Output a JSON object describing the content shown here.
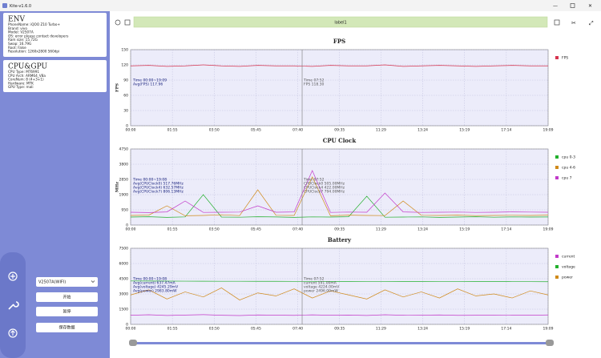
{
  "window": {
    "title": "Kite-v1.6.0"
  },
  "sidebar": {
    "env": {
      "title": "ENV",
      "lines": [
        "PhoneName: iQOO Z10 Turbo+",
        "Brand: vivo",
        "Model: V2507A",
        "OS: error please contact developers",
        "Ram size: 15.72G",
        "Swap: 16.79G",
        "Root: False",
        "Resolution: 1260x2800 560dpi"
      ]
    },
    "cpu_gpu": {
      "title": "CPU&GPU",
      "lines": [
        "CPU Type: MT6991",
        "CPU Arch: ARM64_V8a",
        "CoreNum: 8 (4+3+1)",
        "Hardware: MTK",
        "GPU Type: mali"
      ]
    },
    "device": "V2507A(WIFI)",
    "buttons": [
      "开始",
      "暂停",
      "保存数据"
    ]
  },
  "toolbar": {
    "label": "label1"
  },
  "chart_data": [
    {
      "type": "line",
      "title": "FPS",
      "y_label": "FPS",
      "x": [
        0,
        50,
        100,
        150,
        200,
        250,
        300,
        350,
        400,
        450,
        500,
        550,
        600,
        650,
        700,
        750,
        800,
        850,
        900,
        950,
        1000,
        1050,
        1100,
        1149
      ],
      "xlim": [
        0,
        1149
      ],
      "xticks": [
        {
          "value": 0,
          "label": "00:00"
        },
        {
          "value": 115,
          "label": "01:55"
        },
        {
          "value": 230,
          "label": "03:50"
        },
        {
          "value": 345,
          "label": "05:45"
        },
        {
          "value": 460,
          "label": "07:40"
        },
        {
          "value": 575,
          "label": "09:35"
        },
        {
          "value": 689,
          "label": "11:29"
        },
        {
          "value": 804,
          "label": "13:24"
        },
        {
          "value": 919,
          "label": "15:19"
        },
        {
          "value": 1034,
          "label": "17:14"
        },
        {
          "value": 1149,
          "label": "19:09"
        }
      ],
      "ylim": [
        0,
        150
      ],
      "yticks": [
        0,
        30,
        60,
        90,
        120,
        150
      ],
      "grid": true,
      "series": [
        {
          "name": "FPS",
          "color": "#d6344f",
          "values": [
            118,
            119,
            117,
            118,
            120,
            118,
            117,
            119,
            118,
            118,
            117,
            119,
            118,
            118,
            120,
            117,
            118,
            119,
            118,
            117,
            118,
            119,
            118,
            118
          ]
        }
      ],
      "summary": [
        "Time 00:00~19:09",
        "Avg(FPS) 117.96"
      ],
      "cursor": {
        "value": 472,
        "lines": [
          "Time 07:52",
          "FPS 118.30"
        ]
      }
    },
    {
      "type": "line",
      "title": "CPU Clock",
      "y_label": "MHz",
      "x": [
        0,
        50,
        100,
        150,
        200,
        250,
        300,
        350,
        400,
        450,
        500,
        550,
        600,
        650,
        700,
        750,
        800,
        850,
        900,
        950,
        1000,
        1050,
        1100,
        1149
      ],
      "xlim": [
        0,
        1149
      ],
      "xticks": [
        {
          "value": 0,
          "label": "00:00"
        },
        {
          "value": 115,
          "label": "01:55"
        },
        {
          "value": 230,
          "label": "03:50"
        },
        {
          "value": 345,
          "label": "05:45"
        },
        {
          "value": 460,
          "label": "07:40"
        },
        {
          "value": 575,
          "label": "09:35"
        },
        {
          "value": 689,
          "label": "11:29"
        },
        {
          "value": 804,
          "label": "13:24"
        },
        {
          "value": 919,
          "label": "15:19"
        },
        {
          "value": 1034,
          "label": "17:14"
        },
        {
          "value": 1149,
          "label": "19:09"
        }
      ],
      "ylim": [
        0,
        4750
      ],
      "yticks": [
        0,
        950,
        1900,
        2850,
        3800,
        4750
      ],
      "grid": true,
      "series": [
        {
          "name": "cpu 0-3",
          "color": "#22b02c",
          "values": [
            500,
            520,
            480,
            510,
            1900,
            500,
            490,
            520,
            505,
            480,
            510,
            500,
            520,
            1800,
            490,
            500,
            510,
            480,
            500,
            520,
            490,
            510,
            500,
            505
          ]
        },
        {
          "name": "cpu 4-6",
          "color": "#d08a1a",
          "values": [
            600,
            620,
            1200,
            580,
            600,
            640,
            590,
            2200,
            610,
            600,
            3000,
            580,
            620,
            600,
            590,
            1500,
            610,
            600,
            620,
            590,
            600,
            610,
            600,
            620
          ]
        },
        {
          "name": "cpu 7",
          "color": "#c23ac9",
          "values": [
            800,
            780,
            820,
            1500,
            790,
            800,
            810,
            1200,
            800,
            820,
            3400,
            790,
            810,
            800,
            2000,
            820,
            790,
            800,
            810,
            790,
            800,
            820,
            810,
            800
          ]
        }
      ],
      "summary": [
        "Time 00:00~19:08",
        "Avg(CPUClock0) 517.76MHz",
        "Avg(CPUClock4) 632.57MHz",
        "Avg(CPUClock7) 806.13MHz"
      ],
      "cursor": {
        "value": 472,
        "lines": [
          "Time 07:52",
          "CPUClock0 505.00MHz",
          "CPUClock4 422.00MHz",
          "CPUClock7 794.00MHz"
        ]
      }
    },
    {
      "type": "line",
      "title": "Battery",
      "y_label": "",
      "x": [
        0,
        50,
        100,
        150,
        200,
        250,
        300,
        350,
        400,
        450,
        500,
        550,
        600,
        650,
        700,
        750,
        800,
        850,
        900,
        950,
        1000,
        1050,
        1100,
        1149
      ],
      "xlim": [
        0,
        1149
      ],
      "xticks": [
        {
          "value": 0,
          "label": "00:00"
        },
        {
          "value": 115,
          "label": "01:55"
        },
        {
          "value": 230,
          "label": "03:50"
        },
        {
          "value": 345,
          "label": "05:45"
        },
        {
          "value": 460,
          "label": "07:40"
        },
        {
          "value": 575,
          "label": "09:35"
        },
        {
          "value": 689,
          "label": "11:29"
        },
        {
          "value": 804,
          "label": "13:24"
        },
        {
          "value": 919,
          "label": "15:19"
        },
        {
          "value": 1034,
          "label": "17:14"
        },
        {
          "value": 1149,
          "label": "19:09"
        }
      ],
      "ylim": [
        0,
        7500
      ],
      "yticks": [
        0,
        1500,
        3000,
        4500,
        6000,
        7500
      ],
      "grid": true,
      "series": [
        {
          "name": "current",
          "color": "#c23ac9",
          "values": [
            900,
            950,
            880,
            920,
            960,
            900,
            870,
            930,
            910,
            890,
            940,
            900,
            920,
            880,
            950,
            900,
            910,
            930,
            890,
            900,
            920,
            910,
            900,
            930
          ]
        },
        {
          "name": "voltage",
          "color": "#22b02c",
          "values": [
            4280,
            4270,
            4265,
            4260,
            4255,
            4250,
            4250,
            4245,
            4245,
            4240,
            4240,
            4235,
            4235,
            4230,
            4230,
            4225,
            4225,
            4220,
            4220,
            4215,
            4215,
            4210,
            4210,
            4205
          ]
        },
        {
          "name": "power",
          "color": "#d08a1a",
          "values": [
            2900,
            3400,
            2500,
            3200,
            2700,
            3600,
            2400,
            3100,
            2800,
            3500,
            2600,
            3300,
            2900,
            2500,
            3400,
            2700,
            3200,
            2600,
            3500,
            2800,
            3000,
            2600,
            3300,
            2900
          ]
        }
      ],
      "summary": [
        "Time 00:00~19:08",
        "Avg(current) 637.47mA",
        "Avg(voltage) 4245.29mV",
        "Avg(power) 2983.80mW"
      ],
      "cursor": {
        "value": 472,
        "lines": [
          "Time 07:52",
          "current 591.00mA",
          "voltage 4224.00mV",
          "power 2496.00mW"
        ]
      }
    }
  ]
}
